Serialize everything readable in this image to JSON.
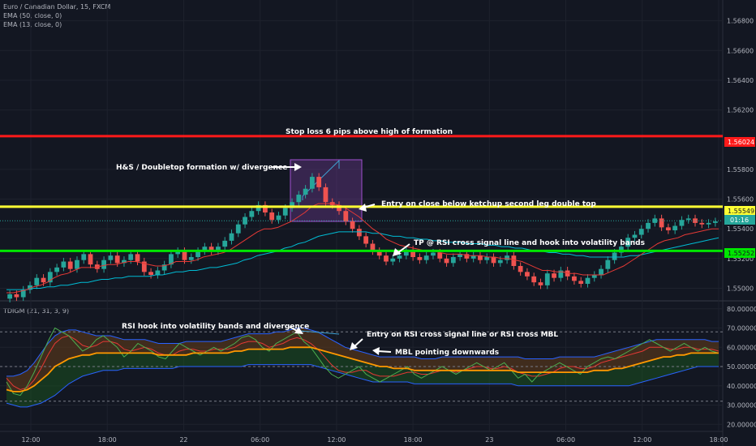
{
  "header": {
    "symbol_line": "Euro / Canadian Dollar, 15, FXCM",
    "ema50": "EMA (50, close, 0)",
    "ema13": "EMA (13, close, 0)"
  },
  "indicator_title": "TDIGM (21, 31, 3, 9)",
  "price_axis": {
    "ticks": [
      "1.56800",
      "1.56600",
      "1.56400",
      "1.56200",
      "1.55800",
      "1.55600",
      "1.55400",
      "1.55200",
      "1.55000"
    ],
    "ylim": [
      1.5491,
      1.5694
    ]
  },
  "rsi_axis": {
    "ticks": [
      "80.00000",
      "70.00000",
      "60.00000",
      "50.00000",
      "40.00000",
      "30.00000",
      "20.00000"
    ],
    "ylim": [
      18,
      82
    ]
  },
  "time_axis": [
    "12:00",
    "18:00",
    "22",
    "06:00",
    "12:00",
    "18:00",
    "23",
    "06:00",
    "12:00",
    "18:00"
  ],
  "levels": {
    "stop": {
      "value": "1.56024",
      "price": 1.56024,
      "color": "#ff1a1a"
    },
    "entry": {
      "value": "1.55549",
      "price": 1.55549,
      "color": "#ffff33"
    },
    "tp": {
      "value": "1.55252",
      "price": 1.55252,
      "color": "#00e600"
    },
    "current": {
      "value": "1.55454",
      "price": 1.55454,
      "timer": "01:16",
      "color": "#26a69a"
    }
  },
  "annotations": {
    "stop": "Stop loss 6 pips above high of formation",
    "formation": "H&S / Doubletop formation w/ divergence",
    "entry": "Entry on close below ketchup second leg double top",
    "tp": "TP @ RSI cross signal line and hook into volatility bands",
    "rsi_hook": "RSI hook into volatility bands and divergence",
    "rsi_entry": "Entry on RSI cross signal line or RSI cross MBL",
    "mbl": "MBL pointing downwards"
  },
  "chart_data": [
    {
      "type": "candlestick",
      "title": "Euro / Canadian Dollar, 15, FXCM",
      "close": [
        1.5496,
        1.5494,
        1.5499,
        1.5502,
        1.5507,
        1.5504,
        1.5511,
        1.5514,
        1.5518,
        1.5513,
        1.5519,
        1.5523,
        1.5516,
        1.5513,
        1.5519,
        1.5522,
        1.5517,
        1.5519,
        1.5523,
        1.5518,
        1.5511,
        1.5509,
        1.5512,
        1.5516,
        1.5523,
        1.5525,
        1.5519,
        1.5521,
        1.5525,
        1.5528,
        1.5525,
        1.5528,
        1.5532,
        1.5537,
        1.5543,
        1.5548,
        1.5552,
        1.5556,
        1.5551,
        1.5546,
        1.5549,
        1.5554,
        1.5558,
        1.5563,
        1.5567,
        1.5575,
        1.5568,
        1.5558,
        1.5556,
        1.5552,
        1.5545,
        1.554,
        1.5535,
        1.553,
        1.5525,
        1.5522,
        1.5518,
        1.552,
        1.5522,
        1.5526,
        1.5521,
        1.5519,
        1.5522,
        1.5524,
        1.552,
        1.5517,
        1.5521,
        1.5523,
        1.552,
        1.5522,
        1.5519,
        1.5521,
        1.5517,
        1.5519,
        1.5522,
        1.5515,
        1.5511,
        1.5508,
        1.5504,
        1.5502,
        1.551,
        1.5507,
        1.5512,
        1.5508,
        1.5505,
        1.5503,
        1.5507,
        1.5509,
        1.5513,
        1.5519,
        1.5524,
        1.5528,
        1.5534,
        1.5536,
        1.554,
        1.5544,
        1.5547,
        1.5541,
        1.5539,
        1.5542,
        1.5546,
        1.5547,
        1.5544,
        1.5543,
        1.5544,
        1.5545
      ],
      "ema13": [
        1.5497,
        1.5497,
        1.5498,
        1.5499,
        1.5501,
        1.5502,
        1.5504,
        1.5507,
        1.5509,
        1.551,
        1.5512,
        1.5514,
        1.5514,
        1.5514,
        1.5515,
        1.5516,
        1.5516,
        1.5517,
        1.5518,
        1.5518,
        1.5517,
        1.5516,
        1.5515,
        1.5515,
        1.5516,
        1.5518,
        1.5518,
        1.5518,
        1.5519,
        1.5521,
        1.5522,
        1.5523,
        1.5524,
        1.5526,
        1.5529,
        1.5532,
        1.5535,
        1.5538,
        1.554,
        1.554,
        1.5541,
        1.5543,
        1.5545,
        1.5548,
        1.5551,
        1.5555,
        1.5557,
        1.5557,
        1.5557,
        1.5556,
        1.5554,
        1.5551,
        1.5548,
        1.5544,
        1.554,
        1.5537,
        1.5533,
        1.5531,
        1.5529,
        1.5528,
        1.5527,
        1.5526,
        1.5525,
        1.5525,
        1.5524,
        1.5523,
        1.5523,
        1.5523,
        1.5522,
        1.5522,
        1.5522,
        1.5521,
        1.5521,
        1.552,
        1.552,
        1.5519,
        1.5518,
        1.5516,
        1.5514,
        1.5512,
        1.5512,
        1.5511,
        1.5511,
        1.551,
        1.551,
        1.5509,
        1.5509,
        1.5509,
        1.5509,
        1.5511,
        1.5513,
        1.5515,
        1.5518,
        1.5521,
        1.5524,
        1.5527,
        1.553,
        1.5532,
        1.5533,
        1.5534,
        1.5536,
        1.5537,
        1.5538,
        1.5539,
        1.554,
        1.554
      ],
      "ema50": [
        1.5499,
        1.5499,
        1.5499,
        1.5499,
        1.55,
        1.55,
        1.5501,
        1.5501,
        1.5502,
        1.5502,
        1.5503,
        1.5504,
        1.5504,
        1.5505,
        1.5506,
        1.5506,
        1.5507,
        1.5507,
        1.5508,
        1.5508,
        1.5508,
        1.5508,
        1.5509,
        1.5509,
        1.551,
        1.5511,
        1.5511,
        1.5512,
        1.5512,
        1.5513,
        1.5514,
        1.5514,
        1.5515,
        1.5516,
        1.5517,
        1.5519,
        1.552,
        1.5522,
        1.5523,
        1.5524,
        1.5525,
        1.5527,
        1.5528,
        1.553,
        1.5531,
        1.5533,
        1.5535,
        1.5536,
        1.5537,
        1.5538,
        1.5538,
        1.5538,
        1.5538,
        1.5538,
        1.5537,
        1.5537,
        1.5536,
        1.5535,
        1.5535,
        1.5534,
        1.5534,
        1.5533,
        1.5533,
        1.5532,
        1.5532,
        1.5531,
        1.5531,
        1.5531,
        1.553,
        1.553,
        1.553,
        1.5529,
        1.5529,
        1.5528,
        1.5528,
        1.5527,
        1.5527,
        1.5526,
        1.5525,
        1.5525,
        1.5524,
        1.5524,
        1.5523,
        1.5523,
        1.5522,
        1.5522,
        1.5521,
        1.5521,
        1.5521,
        1.5521,
        1.5521,
        1.5521,
        1.5522,
        1.5522,
        1.5523,
        1.5524,
        1.5525,
        1.5526,
        1.5527,
        1.5528,
        1.5529,
        1.553,
        1.5531,
        1.5532,
        1.5533,
        1.5534
      ]
    },
    {
      "type": "line",
      "title": "TDIGM (21, 31, 3, 9)",
      "rsi": [
        42,
        36,
        35,
        40,
        47,
        55,
        63,
        70,
        68,
        66,
        62,
        58,
        60,
        64,
        66,
        63,
        60,
        55,
        58,
        62,
        60,
        58,
        55,
        54,
        58,
        62,
        60,
        58,
        56,
        58,
        60,
        58,
        60,
        62,
        65,
        66,
        64,
        60,
        58,
        62,
        64,
        66,
        68,
        63,
        60,
        55,
        50,
        46,
        44,
        46,
        48,
        50,
        46,
        44,
        42,
        44,
        46,
        48,
        50,
        46,
        44,
        46,
        48,
        50,
        48,
        46,
        48,
        50,
        52,
        50,
        48,
        50,
        52,
        48,
        44,
        46,
        42,
        46,
        48,
        50,
        52,
        50,
        48,
        46,
        50,
        52,
        54,
        55,
        54,
        56,
        58,
        60,
        62,
        64,
        62,
        60,
        58,
        60,
        62,
        60,
        58,
        60,
        58,
        57
      ],
      "signal": [
        44,
        40,
        38,
        39,
        43,
        49,
        56,
        62,
        65,
        66,
        64,
        61,
        60,
        61,
        63,
        63,
        62,
        59,
        58,
        59,
        60,
        59,
        57,
        56,
        56,
        58,
        59,
        59,
        58,
        58,
        59,
        59,
        59,
        60,
        62,
        63,
        63,
        62,
        60,
        61,
        62,
        64,
        65,
        64,
        62,
        59,
        55,
        51,
        48,
        47,
        47,
        48,
        48,
        46,
        45,
        45,
        45,
        46,
        47,
        47,
        46,
        46,
        47,
        48,
        48,
        47,
        48,
        49,
        50,
        50,
        49,
        49,
        50,
        49,
        47,
        46,
        45,
        45,
        46,
        47,
        49,
        50,
        50,
        49,
        49,
        50,
        52,
        53,
        54,
        55,
        56,
        57,
        58,
        60,
        60,
        60,
        59,
        59,
        60,
        60,
        59,
        59,
        59,
        58
      ],
      "mbl": [
        38,
        37,
        37,
        38,
        40,
        43,
        46,
        50,
        52,
        54,
        55,
        56,
        56,
        57,
        57,
        57,
        57,
        57,
        57,
        57,
        57,
        57,
        56,
        56,
        56,
        56,
        56,
        57,
        57,
        57,
        57,
        57,
        57,
        58,
        58,
        59,
        59,
        59,
        59,
        59,
        59,
        60,
        60,
        60,
        60,
        59,
        58,
        57,
        56,
        55,
        54,
        53,
        52,
        51,
        50,
        50,
        49,
        49,
        49,
        48,
        48,
        48,
        48,
        48,
        48,
        48,
        48,
        48,
        48,
        48,
        48,
        48,
        48,
        48,
        47,
        47,
        47,
        47,
        47,
        47,
        47,
        47,
        47,
        47,
        47,
        48,
        48,
        48,
        49,
        49,
        50,
        51,
        52,
        53,
        54,
        55,
        55,
        56,
        56,
        57,
        57,
        57,
        57,
        57
      ],
      "upper_band": [
        45,
        45,
        46,
        48,
        52,
        57,
        62,
        66,
        68,
        69,
        69,
        68,
        67,
        66,
        66,
        66,
        65,
        64,
        64,
        64,
        64,
        63,
        62,
        62,
        62,
        62,
        63,
        63,
        63,
        63,
        63,
        63,
        64,
        65,
        66,
        67,
        67,
        67,
        67,
        68,
        68,
        69,
        70,
        70,
        69,
        68,
        66,
        64,
        62,
        60,
        59,
        58,
        57,
        56,
        55,
        55,
        55,
        55,
        55,
        55,
        54,
        54,
        54,
        55,
        55,
        55,
        55,
        55,
        55,
        55,
        55,
        55,
        55,
        55,
        55,
        54,
        54,
        54,
        54,
        54,
        55,
        55,
        55,
        55,
        55,
        55,
        56,
        57,
        58,
        59,
        60,
        61,
        62,
        63,
        64,
        64,
        64,
        64,
        64,
        64,
        64,
        64,
        63,
        63
      ],
      "lower_band": [
        31,
        30,
        29,
        29,
        30,
        31,
        33,
        35,
        38,
        41,
        43,
        45,
        46,
        47,
        48,
        48,
        48,
        49,
        49,
        49,
        49,
        49,
        49,
        49,
        49,
        50,
        50,
        50,
        50,
        50,
        50,
        50,
        50,
        50,
        50,
        51,
        51,
        51,
        51,
        51,
        51,
        51,
        51,
        51,
        51,
        50,
        49,
        48,
        47,
        46,
        45,
        44,
        43,
        42,
        42,
        42,
        42,
        42,
        42,
        41,
        41,
        41,
        41,
        41,
        41,
        41,
        41,
        41,
        41,
        41,
        41,
        41,
        41,
        41,
        40,
        40,
        40,
        40,
        40,
        40,
        40,
        40,
        40,
        40,
        40,
        40,
        40,
        40,
        40,
        40,
        40,
        41,
        42,
        43,
        44,
        45,
        46,
        47,
        48,
        49,
        50,
        50,
        50,
        50
      ],
      "levels": [
        68,
        50,
        32
      ]
    }
  ]
}
